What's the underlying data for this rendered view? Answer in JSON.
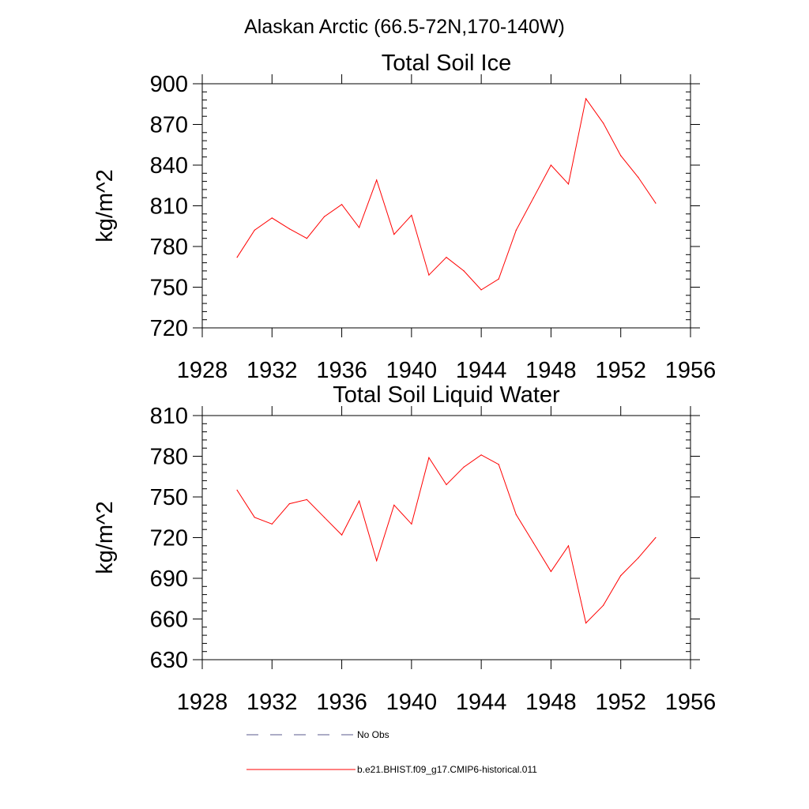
{
  "figure": {
    "title": "Alaskan Arctic (66.5-72N,170-140W)"
  },
  "chart_data": [
    {
      "type": "line",
      "title": "Total Soil Ice",
      "xlabel": "",
      "ylabel": "kg/m^2",
      "xlim": [
        1928,
        1956
      ],
      "ylim": [
        720,
        900
      ],
      "xticks": [
        1928,
        1932,
        1936,
        1940,
        1944,
        1948,
        1952,
        1956
      ],
      "yticks": [
        720,
        750,
        780,
        810,
        840,
        870,
        900
      ],
      "grid": false,
      "series": [
        {
          "name": "b.e21.BHIST.f09_g17.CMIP6-historical.011",
          "color": "#ff0000",
          "x": [
            1930,
            1931,
            1932,
            1933,
            1934,
            1935,
            1936,
            1937,
            1938,
            1939,
            1940,
            1941,
            1942,
            1943,
            1944,
            1945,
            1946,
            1947,
            1948,
            1949,
            1950,
            1951,
            1952,
            1953,
            1954
          ],
          "y": [
            772,
            792,
            801,
            793,
            786,
            802,
            811,
            794,
            829,
            789,
            803,
            759,
            772,
            762,
            748,
            756,
            792,
            816,
            840,
            826,
            889,
            871,
            847,
            831,
            812
          ]
        }
      ]
    },
    {
      "type": "line",
      "title": "Total Soil Liquid Water",
      "xlabel": "",
      "ylabel": "kg/m^2",
      "xlim": [
        1928,
        1956
      ],
      "ylim": [
        630,
        810
      ],
      "xticks": [
        1928,
        1932,
        1936,
        1940,
        1944,
        1948,
        1952,
        1956
      ],
      "yticks": [
        630,
        660,
        690,
        720,
        750,
        780,
        810
      ],
      "grid": false,
      "series": [
        {
          "name": "b.e21.BHIST.f09_g17.CMIP6-historical.011",
          "color": "#ff0000",
          "x": [
            1930,
            1931,
            1932,
            1933,
            1934,
            1935,
            1936,
            1937,
            1938,
            1939,
            1940,
            1941,
            1942,
            1943,
            1944,
            1945,
            1946,
            1947,
            1948,
            1949,
            1950,
            1951,
            1952,
            1953,
            1954
          ],
          "y": [
            755,
            735,
            730,
            745,
            748,
            735,
            722,
            747,
            703,
            744,
            730,
            779,
            759,
            772,
            781,
            774,
            737,
            716,
            695,
            714,
            657,
            670,
            692,
            705,
            720
          ]
        }
      ]
    }
  ],
  "legend": {
    "placement": "bottom",
    "items": [
      {
        "label": "No Obs",
        "color": "#5a5a8c",
        "style": "dashed"
      },
      {
        "label": "b.e21.BHIST.f09_g17.CMIP6-historical.011",
        "color": "#ff0000",
        "style": "solid"
      }
    ]
  }
}
